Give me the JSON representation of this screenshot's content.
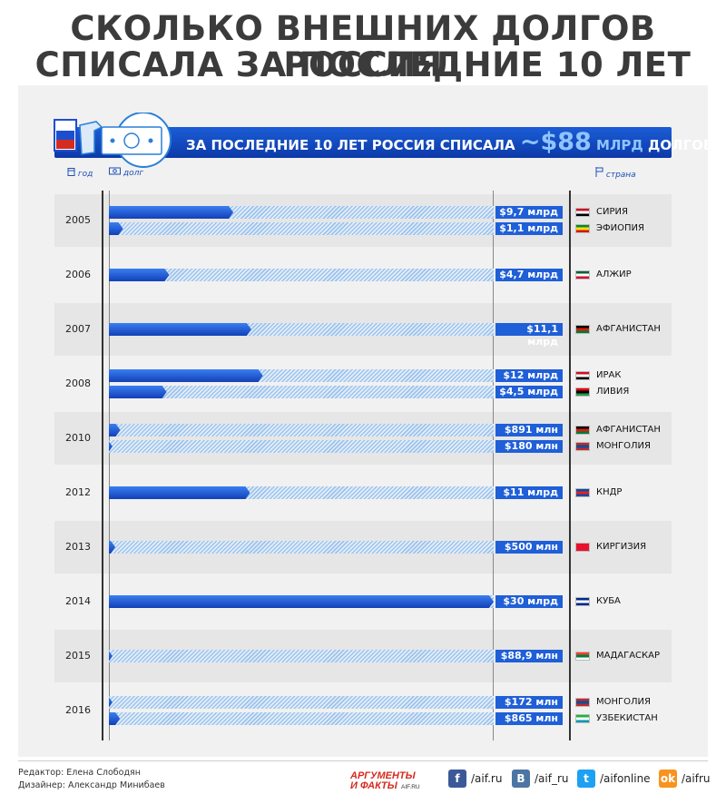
{
  "header": {
    "title_line1": "СКОЛЬКО ВНЕШНИХ ДОЛГОВ РОССИЯ",
    "title_line2": "СПИСАЛА ЗА ПОСЛЕДНИЕ 10 ЛЕТ"
  },
  "banner": {
    "text": "ЗА ПОСЛЕДНИЕ 10 ЛЕТ РОССИЯ СПИСАЛА",
    "amount": "~$88",
    "unit": "МЛРД",
    "suffix": "ДОЛГОВ"
  },
  "legend": {
    "year": "год",
    "debt": "долг",
    "country": "страна"
  },
  "colors": {
    "accent": "#1b4fd0",
    "track": "#9ec3ea",
    "label_bg": "#1f5fd8"
  },
  "chart_data": {
    "type": "bar",
    "title": "Сколько внешних долгов Россия списала за последние 10 лет",
    "unit": "млрд долларов",
    "xlim": [
      0,
      30
    ],
    "groups": [
      {
        "year": "2005",
        "bars": [
          {
            "label": "$9,7 млрд",
            "value": 9.7,
            "country": "СИРИЯ",
            "flag": [
              "#ce1126",
              "#ffffff",
              "#000000"
            ]
          },
          {
            "label": "$1,1 млрд",
            "value": 1.1,
            "country": "ЭФИОПИЯ",
            "flag": [
              "#078930",
              "#fcdd09",
              "#da121a"
            ]
          }
        ]
      },
      {
        "year": "2006",
        "bars": [
          {
            "label": "$4,7 млрд",
            "value": 4.7,
            "country": "АЛЖИР",
            "flag": [
              "#006233",
              "#ffffff",
              "#d21034"
            ]
          }
        ]
      },
      {
        "year": "2007",
        "bars": [
          {
            "label": "$11,1 млрд",
            "value": 11.1,
            "country": "АФГАНИСТАН",
            "flag": [
              "#000000",
              "#d32011",
              "#007a36"
            ]
          }
        ]
      },
      {
        "year": "2008",
        "bars": [
          {
            "label": "$12 млрд",
            "value": 12,
            "country": "ИРАК",
            "flag": [
              "#ce1126",
              "#ffffff",
              "#000000"
            ]
          },
          {
            "label": "$4,5 млрд",
            "value": 4.5,
            "country": "ЛИВИЯ",
            "flag": [
              "#e70013",
              "#000000",
              "#239e46"
            ]
          }
        ]
      },
      {
        "year": "2010",
        "bars": [
          {
            "label": "$891 млн",
            "value": 0.891,
            "country": "АФГАНИСТАН",
            "flag": [
              "#000000",
              "#d32011",
              "#007a36"
            ]
          },
          {
            "label": "$180 млн",
            "value": 0.18,
            "country": "МОНГОЛИЯ",
            "flag": [
              "#c4272f",
              "#015197",
              "#c4272f"
            ]
          }
        ]
      },
      {
        "year": "2012",
        "bars": [
          {
            "label": "$11 млрд",
            "value": 11,
            "country": "КНДР",
            "flag": [
              "#024fa2",
              "#ed1c27",
              "#024fa2"
            ]
          }
        ]
      },
      {
        "year": "2013",
        "bars": [
          {
            "label": "$500 млн",
            "value": 0.5,
            "country": "КИРГИЗИЯ",
            "flag": [
              "#e8112d",
              "#e8112d",
              "#e8112d"
            ]
          }
        ]
      },
      {
        "year": "2014",
        "bars": [
          {
            "label": "$30 млрд",
            "value": 30,
            "country": "КУБА",
            "flag": [
              "#002a8f",
              "#ffffff",
              "#002a8f"
            ]
          }
        ]
      },
      {
        "year": "2015",
        "bars": [
          {
            "label": "$88,9 млн",
            "value": 0.0889,
            "country": "МАДАГАСКАР",
            "flag": [
              "#fc3d32",
              "#007e3a",
              "#ffffff"
            ]
          }
        ]
      },
      {
        "year": "2016",
        "bars": [
          {
            "label": "$172 млн",
            "value": 0.172,
            "country": "МОНГОЛИЯ",
            "flag": [
              "#c4272f",
              "#015197",
              "#c4272f"
            ]
          },
          {
            "label": "$865 млн",
            "value": 0.865,
            "country": "УЗБЕКИСТАН",
            "flag": [
              "#1eb53a",
              "#ffffff",
              "#0099b5"
            ]
          }
        ]
      }
    ]
  },
  "footer": {
    "editor": "Редактор: Елена Слободян",
    "designer": "Дизайнер: Александр Минибаев",
    "logo_line1": "АРГУМЕНТЫ",
    "logo_line2": "И ФАКТЫ",
    "logo_site": "AIF.RU",
    "socials": [
      {
        "icon": "facebook-icon",
        "glyph": "f",
        "color": "#3b5998",
        "text": "/aif.ru"
      },
      {
        "icon": "vk-icon",
        "glyph": "В",
        "color": "#4c75a3",
        "text": "/aif_ru"
      },
      {
        "icon": "twitter-icon",
        "glyph": "t",
        "color": "#1da1f2",
        "text": "/aifonline"
      },
      {
        "icon": "odnoklassniki-icon",
        "glyph": "ok",
        "color": "#f7931e",
        "text": "/aifru"
      }
    ]
  }
}
